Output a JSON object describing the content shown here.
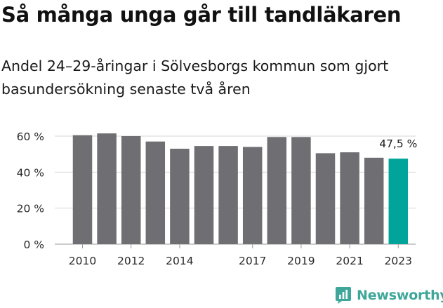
{
  "title": "Så många unga går till tandläkaren",
  "subtitle": "Andel 24–29-åringar i Sölvesborgs kommun som gjort basundersökning senaste två åren",
  "brand": {
    "name": "Newsworthy",
    "icon": "newsworthy-logo-icon",
    "color": "#3fa79a"
  },
  "chart_data": {
    "type": "bar",
    "categories": [
      2010,
      2011,
      2012,
      2013,
      2014,
      2015,
      2016,
      2017,
      2018,
      2019,
      2020,
      2021,
      2022,
      2023
    ],
    "values": [
      60.5,
      61.5,
      60.0,
      57.0,
      53.0,
      54.5,
      54.5,
      54.0,
      59.5,
      59.5,
      50.5,
      51.0,
      48.0,
      47.5
    ],
    "x_tick_labels": [
      "2010",
      "2012",
      "2014",
      "2017",
      "2019",
      "2021",
      "2023"
    ],
    "x_tick_years": [
      2010,
      2012,
      2014,
      2017,
      2019,
      2021,
      2023
    ],
    "y_ticks": [
      0,
      20,
      40,
      60
    ],
    "y_tick_labels": [
      "0 %",
      "20 %",
      "40 %",
      "60 %"
    ],
    "ylim": [
      0,
      60
    ],
    "bar_color": "#6f6e73",
    "highlight_color": "#00a49a",
    "highlight_index": 13,
    "highlight_label": "47,5 %",
    "grid": true
  }
}
